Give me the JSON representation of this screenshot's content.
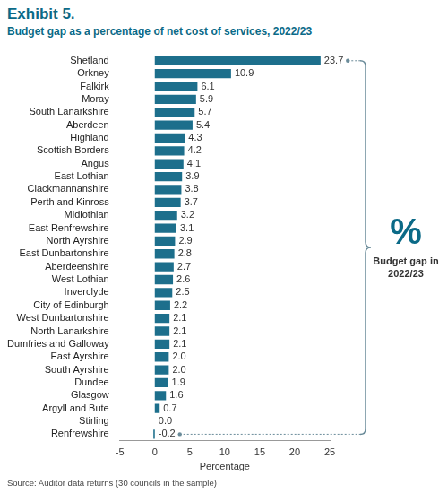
{
  "chart_data": {
    "type": "bar",
    "title": "Exhibit 5.",
    "subtitle": "Budget gap as a percentage of net cost of services, 2022/23",
    "categories": [
      "Shetland",
      "Orkney",
      "Falkirk",
      "Moray",
      "South Lanarkshire",
      "Aberdeen",
      "Highland",
      "Scottish Borders",
      "Angus",
      "East Lothian",
      "Clackmannanshire",
      "Perth and Kinross",
      "Midlothian",
      "East Renfrewshire",
      "North Ayrshire",
      "East Dunbartonshire",
      "Aberdeenshire",
      "West Lothian",
      "Inverclyde",
      "City of Edinburgh",
      "West Dunbartonshire",
      "North Lanarkshire",
      "Dumfries and Galloway",
      "East Ayrshire",
      "South Ayrshire",
      "Dundee",
      "Glasgow",
      "Argyll and Bute",
      "Stirling",
      "Renfrewshire"
    ],
    "values": [
      23.7,
      10.9,
      6.1,
      5.9,
      5.7,
      5.4,
      4.3,
      4.2,
      4.1,
      3.9,
      3.8,
      3.7,
      3.2,
      3.1,
      2.9,
      2.8,
      2.7,
      2.6,
      2.5,
      2.2,
      2.1,
      2.1,
      2.1,
      2.0,
      2.0,
      1.9,
      1.6,
      0.7,
      0.0,
      -0.2
    ],
    "value_labels": [
      "23.7",
      "10.9",
      "6.1",
      "5.9",
      "5.7",
      "5.4",
      "4.3",
      "4.2",
      "4.1",
      "3.9",
      "3.8",
      "3.7",
      "3.2",
      "3.1",
      "2.9",
      "2.8",
      "2.7",
      "2.6",
      "2.5",
      "2.2",
      "2.1",
      "2.1",
      "2.1",
      "2.0",
      "2.0",
      "1.9",
      "1.6",
      "0.7",
      "0.0",
      "-0.2"
    ],
    "color": "#1d6f8c",
    "orientation": "horizontal",
    "data_labels": true,
    "grid": false,
    "xlim": [
      -5,
      25
    ],
    "xticks": [
      -5,
      0,
      5,
      10,
      15,
      20,
      25
    ],
    "xlabel": "Percentage",
    "annotations": [
      "%",
      "Budget gap in 2022/23"
    ],
    "source": "Source: Auditor data returns (30 councils in the sample)"
  }
}
